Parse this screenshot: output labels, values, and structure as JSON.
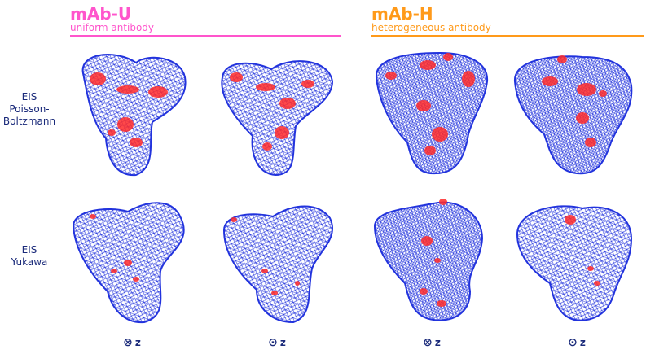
{
  "groups": [
    {
      "title": "mAb-U",
      "subtitle": "uniform antibody",
      "color": "#ff55cc"
    },
    {
      "title": "mAb-H",
      "subtitle": "heterogeneous antibody",
      "color": "#ff9a1a"
    }
  ],
  "rows": [
    {
      "lines": [
        "EIS",
        "Poisson-",
        "Boltzmann"
      ]
    },
    {
      "lines": [
        "EIS",
        "Yukawa"
      ]
    }
  ],
  "axis_labels": [
    {
      "symbol": "⊗",
      "text": "z"
    },
    {
      "symbol": "⊙",
      "text": "z"
    },
    {
      "symbol": "⊗",
      "text": "z"
    },
    {
      "symbol": "⊙",
      "text": "z"
    }
  ],
  "colors": {
    "mesh": "#2233dd",
    "hotspot": "#ff2a2a",
    "label": "#1a2a7a"
  }
}
